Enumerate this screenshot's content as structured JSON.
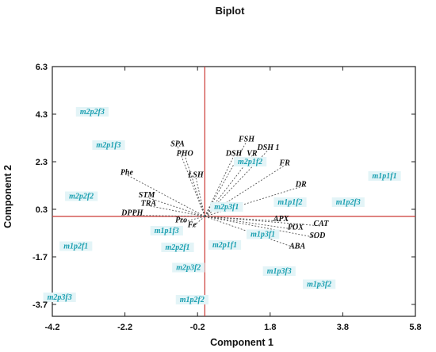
{
  "chart_data": {
    "type": "scatter",
    "title": "Biplot",
    "xlabel": "Component 1",
    "ylabel": "Component 2",
    "xlim": [
      -4.2,
      5.8
    ],
    "ylim": [
      -4.2,
      6.3
    ],
    "xticks": [
      "-4.2",
      "-2.2",
      "-0.2",
      "1.8",
      "3.8",
      "5.8"
    ],
    "yticks": [
      "6.3",
      "4.3",
      "2.3",
      "0.3",
      "-1.7",
      "-3.7"
    ],
    "xtick_values": [
      -4.2,
      -2.2,
      -0.2,
      1.8,
      3.8,
      5.8
    ],
    "ytick_values": [
      6.3,
      4.3,
      2.3,
      0.3,
      -1.7,
      -3.7
    ],
    "grid": false,
    "reference_lines": {
      "x": 0,
      "y": 0,
      "color": "#cc3a36"
    },
    "colors": {
      "vectors": "#555555",
      "observations": "#1a9fb0",
      "reference": "#cc3a36"
    },
    "variables": [
      {
        "label": "SPA",
        "x": -0.75,
        "y": 2.95
      },
      {
        "label": "PHO",
        "x": -0.55,
        "y": 2.55
      },
      {
        "label": "LSH",
        "x": -0.25,
        "y": 1.65
      },
      {
        "label": "Phe",
        "x": -2.15,
        "y": 1.75
      },
      {
        "label": "STM",
        "x": -1.6,
        "y": 0.8
      },
      {
        "label": "TRA",
        "x": -1.55,
        "y": 0.45
      },
      {
        "label": "DPPH",
        "x": -2.0,
        "y": 0.05
      },
      {
        "label": "Pro",
        "x": -0.65,
        "y": -0.25
      },
      {
        "label": "Fe",
        "x": -0.35,
        "y": -0.45
      },
      {
        "label": "FSH",
        "x": 1.15,
        "y": 3.15
      },
      {
        "label": "DSH 1",
        "x": 1.75,
        "y": 2.8
      },
      {
        "label": "VR",
        "x": 1.3,
        "y": 2.55
      },
      {
        "label": "DSH",
        "x": 0.8,
        "y": 2.55
      },
      {
        "label": "FR",
        "x": 2.2,
        "y": 2.15
      },
      {
        "label": "DR",
        "x": 2.65,
        "y": 1.25
      },
      {
        "label": "APX",
        "x": 2.1,
        "y": -0.2
      },
      {
        "label": "CAT",
        "x": 3.2,
        "y": -0.4
      },
      {
        "label": "POX",
        "x": 2.5,
        "y": -0.55
      },
      {
        "label": "SOD",
        "x": 3.1,
        "y": -0.9
      },
      {
        "label": "ABA",
        "x": 2.55,
        "y": -1.35
      }
    ],
    "observations": [
      {
        "label": "m2p2f3",
        "x": -3.1,
        "y": 4.3
      },
      {
        "label": "m2p1f3",
        "x": -2.65,
        "y": 2.9
      },
      {
        "label": "m2p2f2",
        "x": -3.4,
        "y": 0.75
      },
      {
        "label": "m1p2f1",
        "x": -3.55,
        "y": -1.35
      },
      {
        "label": "m2p3f3",
        "x": -4.0,
        "y": -3.5
      },
      {
        "label": "m1p1f3",
        "x": -1.05,
        "y": -0.7
      },
      {
        "label": "m2p2f1",
        "x": -0.75,
        "y": -1.4
      },
      {
        "label": "m2p3f2",
        "x": -0.45,
        "y": -2.25
      },
      {
        "label": "m1p2f2",
        "x": -0.35,
        "y": -3.6
      },
      {
        "label": "m2p1f2",
        "x": 1.25,
        "y": 2.2
      },
      {
        "label": "m2p3f1",
        "x": 0.6,
        "y": 0.3
      },
      {
        "label": "m2p1f1",
        "x": 0.55,
        "y": -1.3
      },
      {
        "label": "m1p1f2",
        "x": 2.35,
        "y": 0.5
      },
      {
        "label": "m1p3f1",
        "x": 1.6,
        "y": -0.85
      },
      {
        "label": "m1p3f3",
        "x": 2.05,
        "y": -2.4
      },
      {
        "label": "m1p3f2",
        "x": 3.15,
        "y": -2.95
      },
      {
        "label": "m1p2f3",
        "x": 3.95,
        "y": 0.5
      },
      {
        "label": "m1p1f1",
        "x": 4.95,
        "y": 1.6
      }
    ]
  }
}
